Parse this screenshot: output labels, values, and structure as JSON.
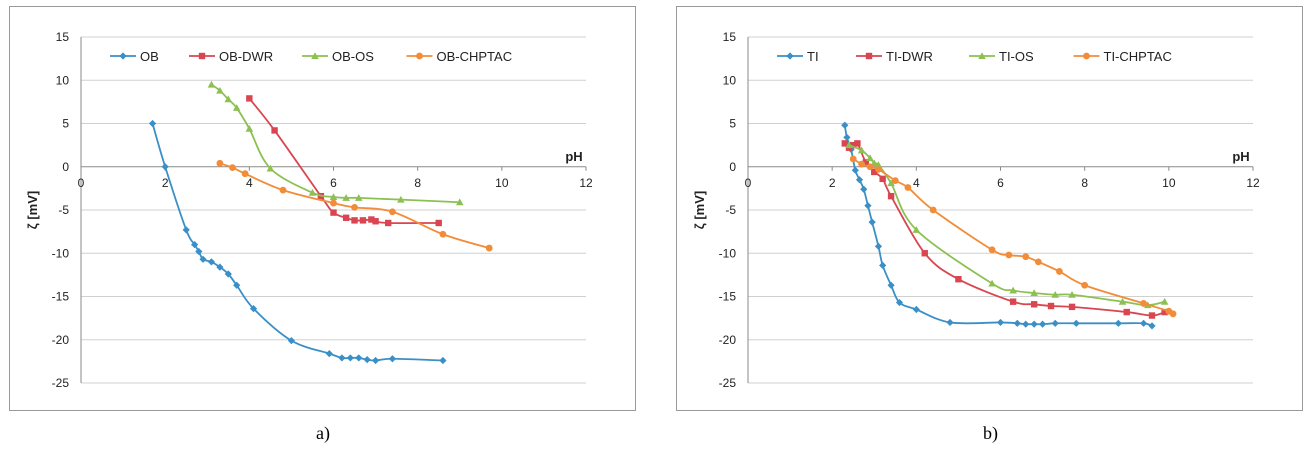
{
  "chart_data": [
    {
      "type": "line",
      "caption": "a)",
      "xlabel": "pH",
      "ylabel": "ζ [mV]",
      "xlim": [
        0,
        12
      ],
      "ylim": [
        -25,
        15
      ],
      "xticks": [
        0,
        2,
        4,
        6,
        8,
        10,
        12
      ],
      "yticks": [
        15,
        10,
        5,
        0,
        -5,
        -10,
        -15,
        -20,
        -25
      ],
      "grid": "horizontal",
      "legend_position": "top",
      "series": [
        {
          "name": "OB",
          "color": "#3a8fc7",
          "marker": "diamond",
          "x": [
            1.7,
            2.0,
            2.5,
            2.7,
            2.8,
            2.9,
            3.1,
            3.3,
            3.5,
            3.7,
            4.1,
            5.0,
            5.9,
            6.2,
            6.4,
            6.6,
            6.8,
            7.0,
            7.4,
            8.6
          ],
          "y": [
            5.0,
            0.0,
            -7.3,
            -9.0,
            -9.8,
            -10.7,
            -11.0,
            -11.6,
            -12.4,
            -13.7,
            -16.4,
            -20.1,
            -21.6,
            -22.1,
            -22.1,
            -22.1,
            -22.3,
            -22.4,
            -22.2,
            -22.4
          ]
        },
        {
          "name": "OB-DWR",
          "color": "#d94550",
          "marker": "square",
          "x": [
            4.0,
            4.6,
            5.7,
            6.0,
            6.3,
            6.5,
            6.7,
            6.9,
            7.0,
            7.3,
            8.5
          ],
          "y": [
            7.9,
            4.2,
            -3.4,
            -5.3,
            -5.9,
            -6.2,
            -6.2,
            -6.1,
            -6.3,
            -6.5,
            -6.5
          ]
        },
        {
          "name": "OB-OS",
          "color": "#8cc152",
          "marker": "triangle",
          "x": [
            3.1,
            3.3,
            3.5,
            3.7,
            4.0,
            4.5,
            5.5,
            6.0,
            6.3,
            6.6,
            7.6,
            9.0
          ],
          "y": [
            9.5,
            8.8,
            7.8,
            6.8,
            4.4,
            -0.2,
            -3.0,
            -3.5,
            -3.6,
            -3.6,
            -3.8,
            -4.1
          ]
        },
        {
          "name": "OB-CHPTAC",
          "color": "#f28c38",
          "marker": "circle",
          "x": [
            3.3,
            3.6,
            3.9,
            4.8,
            6.0,
            6.5,
            7.4,
            8.6,
            9.7
          ],
          "y": [
            0.4,
            -0.1,
            -0.8,
            -2.7,
            -4.2,
            -4.7,
            -5.2,
            -7.8,
            -9.4
          ]
        }
      ]
    },
    {
      "type": "line",
      "caption": "b)",
      "xlabel": "pH",
      "ylabel": "ζ [mV]",
      "xlim": [
        0,
        12
      ],
      "ylim": [
        -25,
        15
      ],
      "xticks": [
        0,
        2,
        4,
        6,
        8,
        10,
        12
      ],
      "yticks": [
        15,
        10,
        5,
        0,
        -5,
        -10,
        -15,
        -20,
        -25
      ],
      "grid": "horizontal",
      "legend_position": "top",
      "series": [
        {
          "name": "TI",
          "color": "#3a8fc7",
          "marker": "diamond",
          "x": [
            2.3,
            2.35,
            2.45,
            2.55,
            2.65,
            2.75,
            2.85,
            2.95,
            3.1,
            3.2,
            3.4,
            3.6,
            4.0,
            4.8,
            6.0,
            6.4,
            6.6,
            6.8,
            7.0,
            7.3,
            7.8,
            8.8,
            9.4,
            9.6
          ],
          "y": [
            4.8,
            3.4,
            2.0,
            -0.4,
            -1.5,
            -2.6,
            -4.5,
            -6.4,
            -9.2,
            -11.4,
            -13.7,
            -15.7,
            -16.5,
            -18.0,
            -18.0,
            -18.1,
            -18.2,
            -18.2,
            -18.2,
            -18.1,
            -18.1,
            -18.1,
            -18.1,
            -18.4
          ]
        },
        {
          "name": "TI-DWR",
          "color": "#d94550",
          "marker": "square",
          "x": [
            2.3,
            2.4,
            2.5,
            2.6,
            2.8,
            3.0,
            3.2,
            3.4,
            4.2,
            5.0,
            6.3,
            6.8,
            7.2,
            7.7,
            9.0,
            9.6,
            9.9
          ],
          "y": [
            2.7,
            2.2,
            2.5,
            2.7,
            0.5,
            -0.6,
            -1.4,
            -3.4,
            -10.0,
            -13.0,
            -15.6,
            -15.9,
            -16.1,
            -16.2,
            -16.8,
            -17.2,
            -16.8
          ]
        },
        {
          "name": "TI-OS",
          "color": "#8cc152",
          "marker": "triangle",
          "x": [
            2.4,
            2.7,
            2.9,
            3.0,
            3.1,
            3.4,
            4.0,
            5.8,
            6.3,
            6.8,
            7.3,
            7.7,
            8.9,
            9.5,
            9.9
          ],
          "y": [
            2.5,
            1.9,
            1.0,
            0.4,
            0.2,
            -1.9,
            -7.3,
            -13.5,
            -14.3,
            -14.6,
            -14.8,
            -14.8,
            -15.6,
            -16.0,
            -15.6
          ]
        },
        {
          "name": "TI-CHPTAC",
          "color": "#f28c38",
          "marker": "circle",
          "x": [
            2.5,
            2.7,
            2.9,
            3.1,
            3.5,
            3.8,
            4.4,
            5.8,
            6.2,
            6.6,
            6.9,
            7.4,
            8.0,
            9.4,
            10.0,
            10.1
          ],
          "y": [
            0.9,
            0.3,
            0.0,
            -0.3,
            -1.6,
            -2.4,
            -5.0,
            -9.6,
            -10.2,
            -10.4,
            -11.0,
            -12.1,
            -13.7,
            -15.8,
            -16.7,
            -17.0
          ]
        }
      ]
    }
  ]
}
